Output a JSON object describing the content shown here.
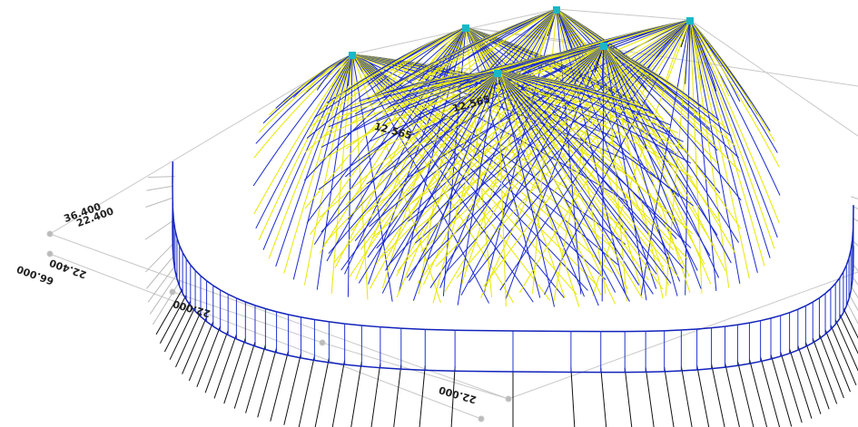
{
  "dimensions": [
    {
      "label": "22.000"
    },
    {
      "label": "22.000"
    },
    {
      "label": "66.000"
    },
    {
      "label": "22.400"
    },
    {
      "label": "36.400"
    },
    {
      "label": "22.400"
    }
  ],
  "annotations": [
    {
      "label": "12.565"
    },
    {
      "label": "12.565"
    }
  ]
}
